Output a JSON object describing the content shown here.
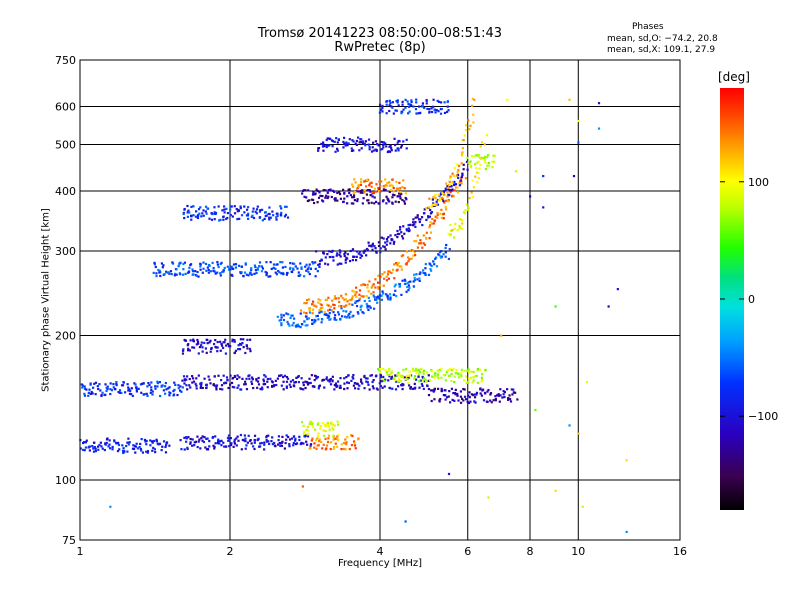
{
  "header": {
    "title": "Tromsø 20141223 08:50:00–08:51:43",
    "subtitle": "RwPretec (8p)"
  },
  "legend": {
    "title": "Phases",
    "line1": "mean, sd,O: −74.2, 20.8",
    "line2": "mean, sd,X: 109.1, 27.9"
  },
  "colorbar": {
    "label": "[deg]",
    "range": [
      -180,
      180
    ],
    "ticks": [
      100,
      0,
      -100
    ],
    "tick_labels": [
      "100",
      "0",
      "−100"
    ]
  },
  "chart_data": {
    "type": "scatter",
    "title": "Tromsø 20141223 08:50:00–08:51:43",
    "subtitle": "RwPretec (8p)",
    "xlabel": "Frequency [MHz]",
    "ylabel": "Stationary phase Virtual Height [km]",
    "xscale": "log",
    "yscale": "log",
    "xlim": [
      1,
      16
    ],
    "ylim": [
      75,
      750
    ],
    "xticks": [
      1,
      2,
      4,
      6,
      8,
      10,
      16
    ],
    "xtick_labels": [
      "1",
      "2",
      "4",
      "6",
      "8",
      "10",
      "16"
    ],
    "yticks": [
      75,
      100,
      200,
      300,
      400,
      500,
      600,
      750
    ],
    "ytick_labels": [
      "75",
      "100",
      "200",
      "300",
      "400",
      "500",
      "600",
      "750"
    ],
    "grid": true,
    "color_by": "phase (deg)",
    "traces": [
      {
        "f_start": 1.0,
        "f_end": 1.5,
        "height": 118,
        "phase": -90
      },
      {
        "f_start": 1.0,
        "f_end": 1.6,
        "height": 155,
        "phase": -80
      },
      {
        "f_start": 1.6,
        "f_end": 2.9,
        "height": 120,
        "phase": -100
      },
      {
        "f_start": 2.9,
        "f_end": 3.6,
        "height": 120,
        "phase": 140
      },
      {
        "f_start": 2.8,
        "f_end": 3.3,
        "height": 128,
        "phase": 90
      },
      {
        "f_start": 1.6,
        "f_end": 5.0,
        "height": 160,
        "phase": -110
      },
      {
        "f_start": 4.0,
        "f_end": 6.5,
        "height": 165,
        "phase": 80
      },
      {
        "f_start": 5.0,
        "f_end": 7.5,
        "height": 150,
        "phase": -120
      },
      {
        "f_start": 1.4,
        "f_end": 3.0,
        "height": 275,
        "phase": -70
      },
      {
        "f_start": 2.5,
        "f_end": 5.5,
        "height": 215,
        "phase": -60,
        "rise_to": 300
      },
      {
        "f_start": 2.8,
        "f_end": 5.9,
        "height": 230,
        "phase": 140,
        "rise_to": 430
      },
      {
        "f_start": 3.0,
        "f_end": 6.0,
        "height": 290,
        "phase": -110,
        "rise_to": 450
      },
      {
        "f_start": 1.6,
        "f_end": 2.6,
        "height": 360,
        "phase": -80
      },
      {
        "f_start": 2.8,
        "f_end": 4.5,
        "height": 390,
        "phase": -130
      },
      {
        "f_start": 3.5,
        "f_end": 4.5,
        "height": 410,
        "phase": 140
      },
      {
        "f_start": 3.0,
        "f_end": 4.5,
        "height": 500,
        "phase": -100
      },
      {
        "f_start": 4.0,
        "f_end": 5.5,
        "height": 600,
        "phase": -80
      },
      {
        "f_start": 5.0,
        "f_end": 6.2,
        "height": 380,
        "phase": 120,
        "rise_to": 620
      },
      {
        "f_start": 6.0,
        "f_end": 6.8,
        "height": 460,
        "phase": 80
      },
      {
        "f_start": 5.5,
        "f_end": 6.5,
        "height": 330,
        "phase": 100,
        "rise_to": 520
      },
      {
        "f_start": 1.6,
        "f_end": 2.2,
        "height": 190,
        "phase": -110
      }
    ],
    "sparse_points": [
      {
        "x": 1.15,
        "y": 88,
        "phase": -40
      },
      {
        "x": 2.8,
        "y": 97,
        "phase": 150
      },
      {
        "x": 4.5,
        "y": 82,
        "phase": -60
      },
      {
        "x": 5.5,
        "y": 103,
        "phase": -100
      },
      {
        "x": 6.6,
        "y": 92,
        "phase": 80
      },
      {
        "x": 9.0,
        "y": 230,
        "phase": 50
      },
      {
        "x": 10.4,
        "y": 160,
        "phase": 90
      },
      {
        "x": 10.2,
        "y": 88,
        "phase": 80
      },
      {
        "x": 9.6,
        "y": 130,
        "phase": -40
      },
      {
        "x": 10.0,
        "y": 125,
        "phase": 120
      },
      {
        "x": 12.5,
        "y": 110,
        "phase": 110
      },
      {
        "x": 11.5,
        "y": 230,
        "phase": -120
      },
      {
        "x": 12.0,
        "y": 250,
        "phase": -100
      },
      {
        "x": 10.0,
        "y": 505,
        "phase": -60
      },
      {
        "x": 10.0,
        "y": 560,
        "phase": 100
      },
      {
        "x": 11.0,
        "y": 610,
        "phase": -100
      },
      {
        "x": 11.0,
        "y": 540,
        "phase": -40
      },
      {
        "x": 8.0,
        "y": 390,
        "phase": -110
      },
      {
        "x": 8.5,
        "y": 370,
        "phase": -100
      },
      {
        "x": 7.5,
        "y": 440,
        "phase": 80
      },
      {
        "x": 8.5,
        "y": 430,
        "phase": -80
      },
      {
        "x": 9.6,
        "y": 620,
        "phase": 120
      },
      {
        "x": 7.2,
        "y": 620,
        "phase": 100
      },
      {
        "x": 9.8,
        "y": 430,
        "phase": -120
      },
      {
        "x": 12.5,
        "y": 78,
        "phase": -40
      },
      {
        "x": 7.0,
        "y": 200,
        "phase": 130
      },
      {
        "x": 8.2,
        "y": 140,
        "phase": 60
      },
      {
        "x": 9.0,
        "y": 95,
        "phase": 110
      }
    ]
  }
}
